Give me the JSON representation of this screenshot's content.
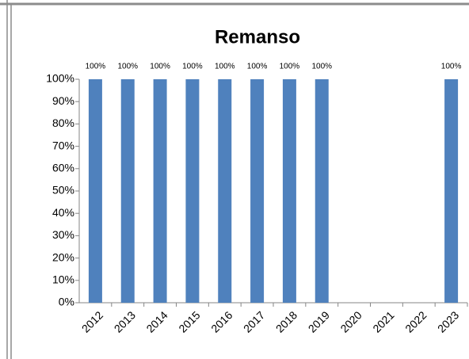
{
  "chart_data": {
    "type": "bar",
    "title": "Remanso",
    "categories": [
      "2012",
      "2013",
      "2014",
      "2015",
      "2016",
      "2017",
      "2018",
      "2019",
      "2020",
      "2021",
      "2022",
      "2023"
    ],
    "values": [
      100,
      100,
      100,
      100,
      100,
      100,
      100,
      100,
      null,
      null,
      null,
      100
    ],
    "value_labels": [
      "100%",
      "100%",
      "100%",
      "100%",
      "100%",
      "100%",
      "100%",
      "100%",
      null,
      null,
      null,
      "100%"
    ],
    "color": "#4f81bd",
    "ylim": [
      0,
      100
    ],
    "yticks": [
      {
        "value": 0,
        "label": "0%"
      },
      {
        "value": 10,
        "label": "10%"
      },
      {
        "value": 20,
        "label": "20%"
      },
      {
        "value": 30,
        "label": "30%"
      },
      {
        "value": 40,
        "label": "40%"
      },
      {
        "value": 50,
        "label": "50%"
      },
      {
        "value": 60,
        "label": "60%"
      },
      {
        "value": 70,
        "label": "70%"
      },
      {
        "value": 80,
        "label": "80%"
      },
      {
        "value": 90,
        "label": "90%"
      },
      {
        "value": 100,
        "label": "100%"
      }
    ],
    "grid": false
  }
}
